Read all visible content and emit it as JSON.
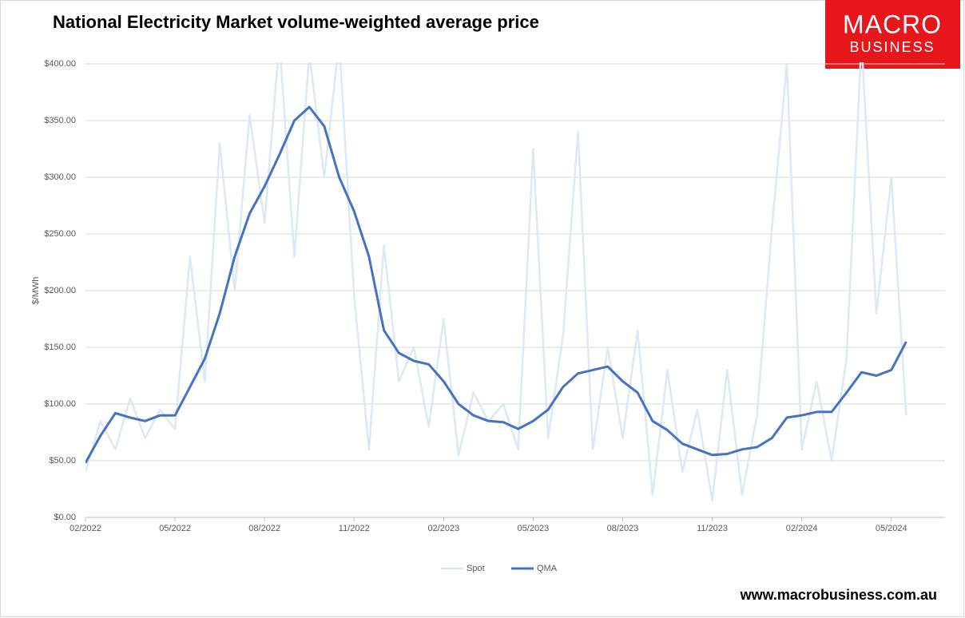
{
  "chart_data": {
    "type": "line",
    "title": "National Electricity Market volume-weighted average price",
    "y_label": "$/MWh",
    "x": [
      0,
      0.5,
      1,
      1.5,
      2,
      2.5,
      3,
      3.5,
      4,
      4.5,
      5,
      5.5,
      6,
      6.5,
      7,
      7.5,
      8,
      8.5,
      9,
      9.5,
      10,
      10.5,
      11,
      11.5,
      12,
      12.5,
      13,
      13.5,
      14,
      14.5,
      15,
      15.5,
      16,
      16.5,
      17,
      17.5,
      18,
      18.5,
      19,
      19.5,
      20,
      20.5,
      21,
      21.5,
      22,
      22.5,
      23,
      23.5,
      24,
      24.5,
      25,
      25.5,
      26,
      26.5,
      27,
      27.5
    ],
    "series": [
      {
        "name": "Spot",
        "color": "#dce9f5",
        "width": 2.5,
        "values": [
          40,
          85,
          60,
          105,
          70,
          95,
          78,
          230,
          120,
          330,
          200,
          355,
          260,
          420,
          230,
          410,
          300,
          420,
          195,
          60,
          240,
          120,
          150,
          80,
          175,
          55,
          110,
          85,
          100,
          60,
          325,
          70,
          160,
          340,
          60,
          150,
          70,
          165,
          20,
          130,
          40,
          95,
          15,
          130,
          20,
          90,
          255,
          400,
          60,
          120,
          50,
          140,
          420,
          180,
          300,
          90
        ]
      },
      {
        "name": "QMA",
        "color": "#4472c4",
        "width": 3,
        "values": [
          48,
          72,
          92,
          88,
          85,
          90,
          90,
          115,
          140,
          180,
          230,
          268,
          292,
          320,
          350,
          362,
          345,
          300,
          270,
          230,
          165,
          145,
          138,
          135,
          120,
          100,
          90,
          85,
          84,
          78,
          85,
          95,
          115,
          127,
          130,
          133,
          120,
          110,
          85,
          77,
          65,
          60,
          55,
          56,
          60,
          62,
          70,
          88,
          90,
          93,
          93,
          110,
          128,
          125,
          130,
          155
        ]
      }
    ],
    "xlim": [
      0,
      28.8
    ],
    "xticks": [
      {
        "value": 0,
        "label": "02/2022"
      },
      {
        "value": 3,
        "label": "05/2022"
      },
      {
        "value": 6,
        "label": "08/2022"
      },
      {
        "value": 9,
        "label": "11/2022"
      },
      {
        "value": 12,
        "label": "02/2023"
      },
      {
        "value": 15,
        "label": "05/2023"
      },
      {
        "value": 18,
        "label": "08/2023"
      },
      {
        "value": 21,
        "label": "11/2023"
      },
      {
        "value": 24,
        "label": "02/2024"
      },
      {
        "value": 27,
        "label": "05/2024"
      }
    ],
    "ylim": [
      0,
      400
    ],
    "yticks": [
      {
        "value": 0,
        "label": "$0.00"
      },
      {
        "value": 50,
        "label": "$50.00"
      },
      {
        "value": 100,
        "label": "$100.00"
      },
      {
        "value": 150,
        "label": "$150.00"
      },
      {
        "value": 200,
        "label": "$200.00"
      },
      {
        "value": 250,
        "label": "$250.00"
      },
      {
        "value": 300,
        "label": "$300.00"
      },
      {
        "value": 350,
        "label": "$350.00"
      },
      {
        "value": 400,
        "label": "$400.00"
      }
    ],
    "grid": true,
    "legend": "bottom"
  },
  "branding": {
    "logo_top": "MACRO",
    "logo_bottom": "BUSINESS",
    "url": "www.macrobusiness.com.au"
  }
}
